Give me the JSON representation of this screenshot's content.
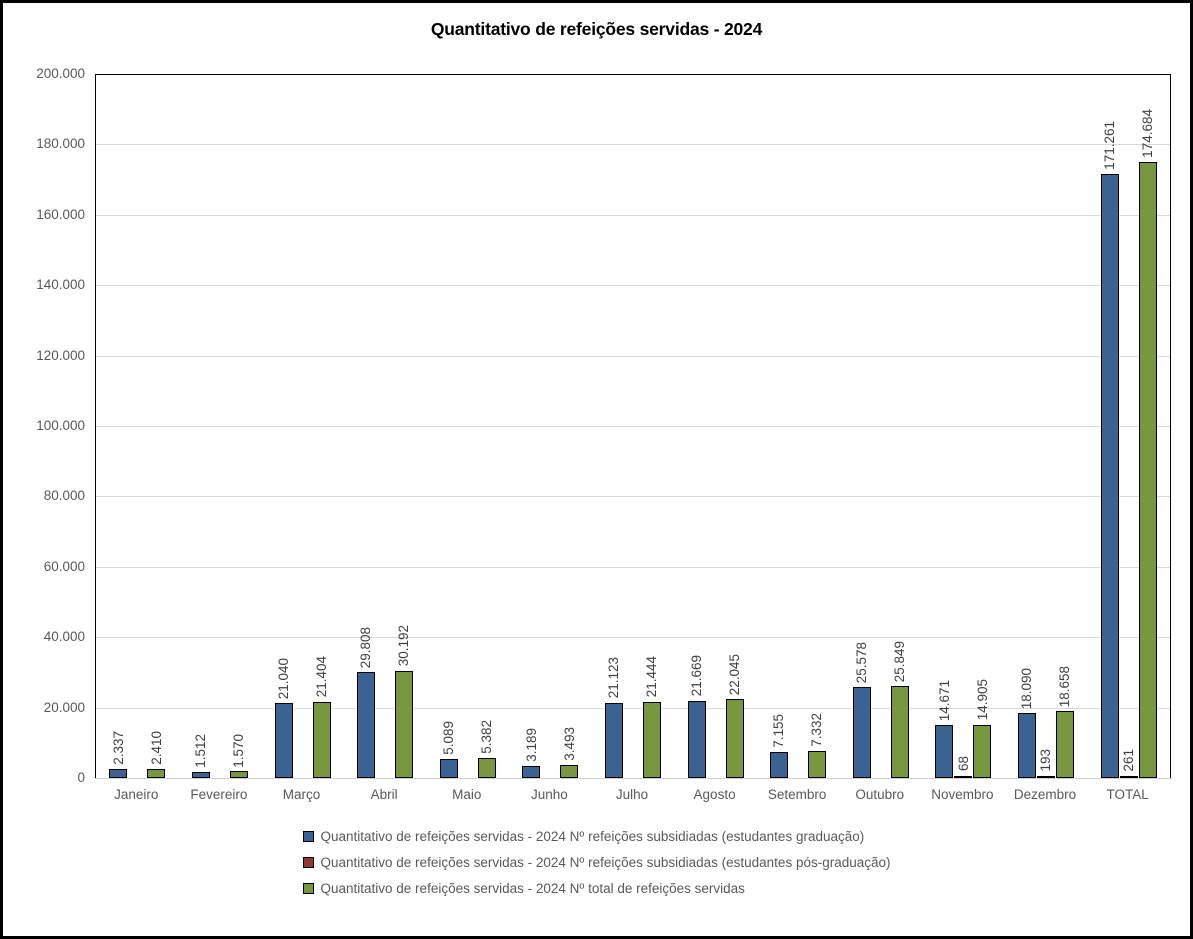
{
  "title": "Quantitativo de refeições servidas - 2024",
  "colors": {
    "series_graduacao": "#3A6394",
    "series_pos_graduacao": "#953735",
    "series_total": "#79973F",
    "gridline": "#D9D9D9",
    "axis_text": "#595959",
    "data_label_text": "#404040",
    "plot_border": "#000000"
  },
  "y_axis": {
    "tick_labels": [
      "200.000",
      "180.000",
      "160.000",
      "140.000",
      "120.000",
      "100.000",
      "80.000",
      "60.000",
      "40.000",
      "20.000",
      "0"
    ],
    "max": 200000,
    "step": 20000
  },
  "chart_data": {
    "type": "bar",
    "title": "Quantitativo de refeições servidas - 2024",
    "categories": [
      "Janeiro",
      "Fevereiro",
      "Março",
      "Abril",
      "Maio",
      "Junho",
      "Julho",
      "Agosto",
      "Setembro",
      "Outubro",
      "Novembro",
      "Dezembro",
      "TOTAL"
    ],
    "series": [
      {
        "name": "Quantitativo de refeições servidas - 2024 Nº refeições subsidiadas (estudantes graduação)",
        "key": "graduacao",
        "color": "#3A6394",
        "values": [
          2337,
          1512,
          21040,
          29808,
          5089,
          3189,
          21123,
          21669,
          7155,
          25578,
          14671,
          18090,
          171261
        ],
        "labels": [
          "2.337",
          "1.512",
          "21.040",
          "29.808",
          "5.089",
          "3.189",
          "21.123",
          "21.669",
          "7.155",
          "25.578",
          "14.671",
          "18.090",
          "171.261"
        ]
      },
      {
        "name": "Quantitativo de refeições servidas - 2024 Nº refeições subsidiadas (estudantes pós-graduação)",
        "key": "pos-graduacao",
        "color": "#953735",
        "values": [
          0,
          0,
          0,
          0,
          0,
          0,
          0,
          0,
          0,
          0,
          68,
          193,
          261
        ],
        "labels": [
          "",
          "",
          "",
          "",
          "",
          "",
          "",
          "",
          "",
          "",
          "68",
          "193",
          "261"
        ]
      },
      {
        "name": "Quantitativo de refeições servidas - 2024 Nº total de refeições servidas",
        "key": "total",
        "color": "#79973F",
        "values": [
          2410,
          1570,
          21404,
          30192,
          5382,
          3493,
          21444,
          22045,
          7332,
          25849,
          14905,
          18658,
          174684
        ],
        "labels": [
          "2.410",
          "1.570",
          "21.404",
          "30.192",
          "5.382",
          "3.493",
          "21.444",
          "22.045",
          "7.332",
          "25.849",
          "14.905",
          "18.658",
          "174.684"
        ]
      }
    ],
    "ylim": [
      0,
      200000
    ],
    "grid": true,
    "legend_position": "bottom"
  }
}
